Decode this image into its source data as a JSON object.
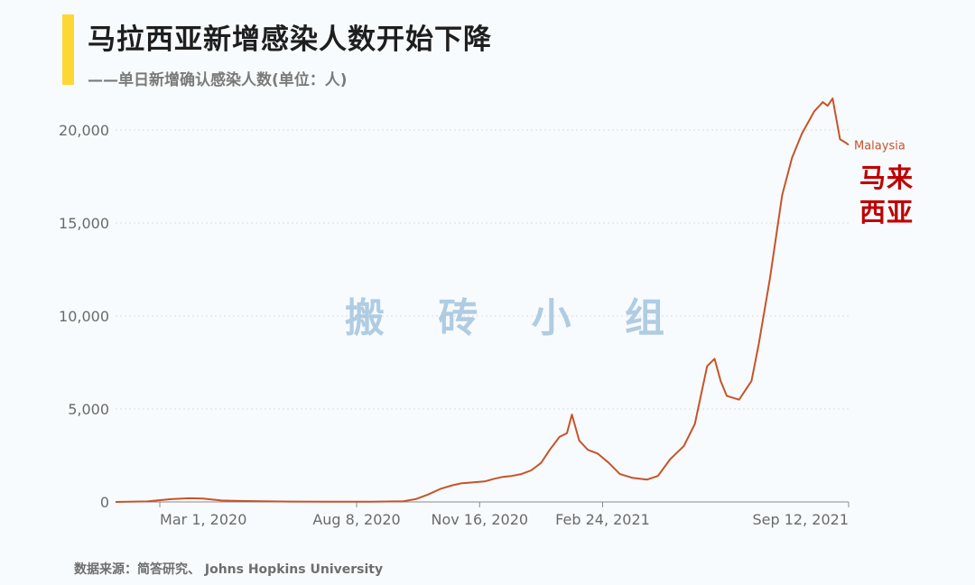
{
  "header": {
    "title": "马拉西亚新增感染人数开始下降",
    "subtitle": "——单日新增确认感染人数(单位：人)"
  },
  "annotation": "马来\n西亚",
  "watermark": "搬 砖 小 组",
  "source": "数据来源：简答研究、 Johns Hopkins University",
  "colors": {
    "line": "#c7532a",
    "accent": "#fdd835",
    "annotation": "#c00000",
    "watermark": "#9ec1dc"
  },
  "chart_data": {
    "type": "line",
    "title": "马拉西亚新增感染人数开始下降",
    "xlabel": "",
    "ylabel": "",
    "ylim": [
      0,
      20000
    ],
    "yticks": [
      0,
      5000,
      10000,
      15000,
      20000
    ],
    "ytick_labels": [
      "0",
      "5,000",
      "10,000",
      "15,000",
      "20,000"
    ],
    "xtick_labels": [
      "Mar 1, 2020",
      "Aug 8, 2020",
      "Nov 16, 2020",
      "Feb 24, 2021",
      "Sep 12, 2021"
    ],
    "xtick_dates": [
      "2020-03-01",
      "2020-08-08",
      "2020-11-16",
      "2021-02-24",
      "2021-09-12"
    ],
    "grid": "horizontal dotted",
    "series": [
      {
        "name": "Malaysia",
        "x": [
          "2020-01-25",
          "2020-02-20",
          "2020-03-10",
          "2020-03-25",
          "2020-04-05",
          "2020-04-20",
          "2020-05-10",
          "2020-06-15",
          "2020-07-15",
          "2020-08-20",
          "2020-09-15",
          "2020-09-25",
          "2020-10-05",
          "2020-10-15",
          "2020-10-25",
          "2020-11-01",
          "2020-11-10",
          "2020-11-20",
          "2020-11-28",
          "2020-12-05",
          "2020-12-12",
          "2020-12-20",
          "2020-12-28",
          "2021-01-05",
          "2021-01-12",
          "2021-01-20",
          "2021-01-26",
          "2021-01-30",
          "2021-02-05",
          "2021-02-12",
          "2021-02-20",
          "2021-03-01",
          "2021-03-10",
          "2021-03-20",
          "2021-04-01",
          "2021-04-10",
          "2021-04-20",
          "2021-05-01",
          "2021-05-10",
          "2021-05-20",
          "2021-05-26",
          "2021-05-31",
          "2021-06-05",
          "2021-06-15",
          "2021-06-25",
          "2021-07-01",
          "2021-07-10",
          "2021-07-20",
          "2021-07-28",
          "2021-08-05",
          "2021-08-15",
          "2021-08-22",
          "2021-08-26",
          "2021-08-30",
          "2021-09-05",
          "2021-09-10",
          "2021-09-12"
        ],
        "y": [
          0,
          30,
          150,
          200,
          180,
          80,
          50,
          20,
          10,
          15,
          40,
          150,
          400,
          700,
          900,
          1000,
          1050,
          1100,
          1250,
          1350,
          1400,
          1500,
          1700,
          2100,
          2800,
          3500,
          3700,
          4700,
          3300,
          2800,
          2600,
          2100,
          1500,
          1300,
          1200,
          1400,
          2300,
          3000,
          4200,
          7300,
          7700,
          6500,
          5700,
          5500,
          6500,
          8500,
          12000,
          16500,
          18500,
          19800,
          21000,
          21500,
          21300,
          21700,
          19500,
          19300,
          19200
        ]
      }
    ]
  }
}
